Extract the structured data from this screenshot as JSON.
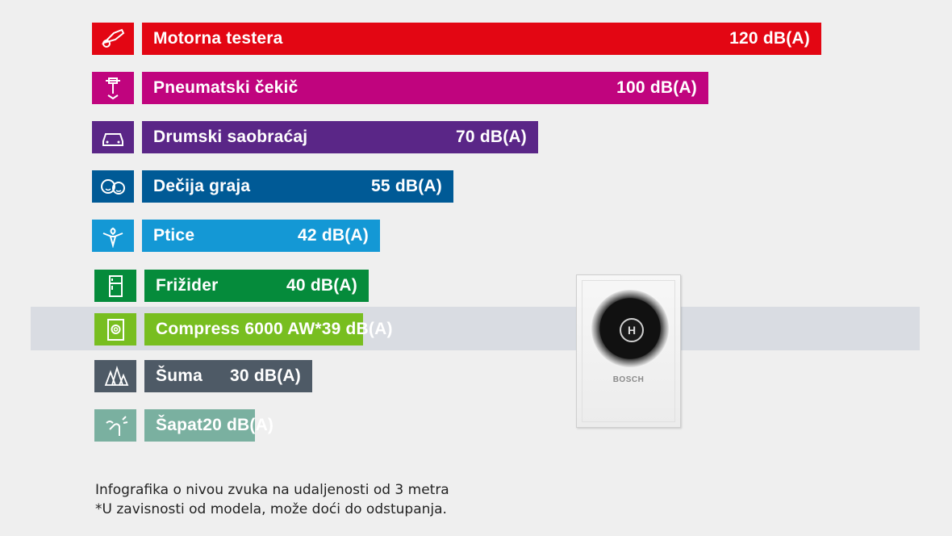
{
  "chart_data": {
    "type": "bar",
    "orientation": "horizontal",
    "categories": [
      "Motorna testera",
      "Pneumatski čekič",
      "Drumski saobraćaj",
      "Dečija graja",
      "Ptice",
      "Frižider",
      "Compress 6000 AW*",
      "Šuma",
      "Šapat"
    ],
    "values": [
      120,
      100,
      70,
      55,
      42,
      40,
      39,
      30,
      20
    ],
    "value_labels": [
      "120 dB(A)",
      "100 dB(A)",
      "70 dB(A)",
      "55 dB(A)",
      "42 dB(A)",
      "40 dB(A)",
      "39 dB(A)",
      "30 dB(A)",
      "20 dB(A)"
    ],
    "unit": "dB(A)",
    "colors": [
      "#e30613",
      "#c0047e",
      "#5a2687",
      "#005a96",
      "#1498d5",
      "#058b3b",
      "#78be20",
      "#4e5a66",
      "#7ab0a0"
    ],
    "icons": [
      "chainsaw-icon",
      "jackhammer-icon",
      "car-icon",
      "children-icon",
      "bird-icon",
      "fridge-icon",
      "heat-pump-icon",
      "forest-icon",
      "whisper-icon"
    ],
    "highlight_index": 6
  },
  "product": {
    "brand": "BOSCH",
    "logo": "H"
  },
  "footnote": {
    "line1": "Infografika o nivou zvuka na udaljenosti od 3 metra",
    "line2": "*U zavisnosti od modela, može doći do odstupanja."
  }
}
